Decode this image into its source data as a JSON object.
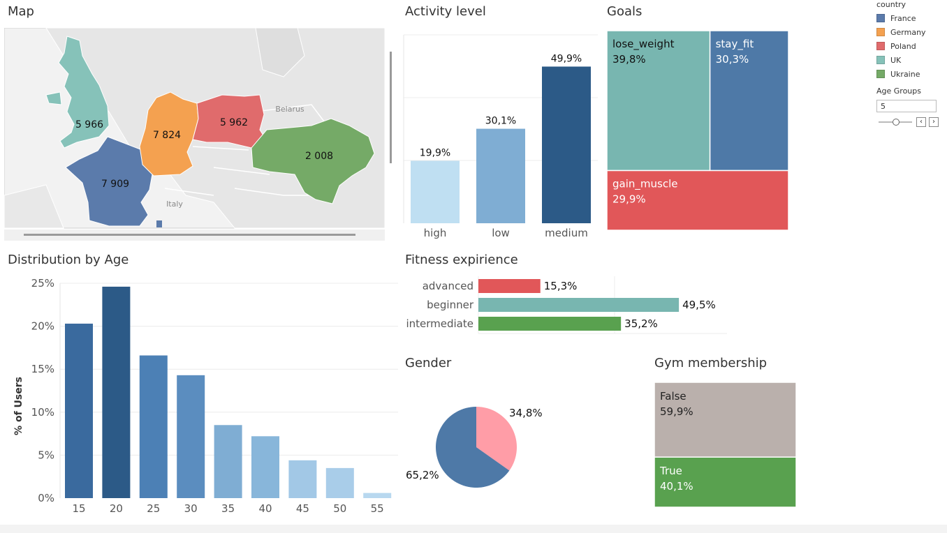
{
  "titles": {
    "map": "Map",
    "activity": "Activity level",
    "goals": "Goals",
    "age": "Distribution by Age",
    "fitness": "Fitness expirience",
    "gender": "Gender",
    "gym": "Gym membership"
  },
  "legend": {
    "title": "country",
    "items": [
      {
        "label": "France",
        "color": "#5b7bab"
      },
      {
        "label": "Germany",
        "color": "#f4a150"
      },
      {
        "label": "Poland",
        "color": "#e06b6c"
      },
      {
        "label": "UK",
        "color": "#86c2b9"
      },
      {
        "label": "Ukraine",
        "color": "#75aa67"
      }
    ]
  },
  "age_groups": {
    "label": "Age Groups",
    "value": "5",
    "prev_icon": "‹",
    "next_icon": "›"
  },
  "map": {
    "labels": [
      "Belarus",
      "Italy"
    ],
    "countries": [
      {
        "name": "UK",
        "value": "5 966",
        "color": "#86c2b9"
      },
      {
        "name": "Germany",
        "value": "7 824",
        "color": "#f4a150"
      },
      {
        "name": "Poland",
        "value": "5 962",
        "color": "#e06b6c"
      },
      {
        "name": "Ukraine",
        "value": "2 008",
        "color": "#75aa67"
      },
      {
        "name": "France",
        "value": "7 909",
        "color": "#5b7bab"
      }
    ]
  },
  "chart_data": [
    {
      "id": "activity",
      "type": "bar",
      "title": "Activity level",
      "categories": [
        "high",
        "low",
        "medium"
      ],
      "values": [
        19.9,
        30.1,
        49.9
      ],
      "value_labels": [
        "19,9%",
        "30,1%",
        "49,9%"
      ],
      "colors": [
        "#bfdff2",
        "#7fadd3",
        "#2c5a87"
      ],
      "ylim": [
        0,
        60
      ],
      "grid": true
    },
    {
      "id": "goals",
      "type": "treemap",
      "title": "Goals",
      "items": [
        {
          "name": "lose_weight",
          "value": 39.8,
          "label": "39,8%",
          "color": "#78b6b0"
        },
        {
          "name": "stay_fit",
          "value": 30.3,
          "label": "30,3%",
          "color": "#4e79a7"
        },
        {
          "name": "gain_muscle",
          "value": 29.9,
          "label": "29,9%",
          "color": "#e15759"
        }
      ]
    },
    {
      "id": "age",
      "type": "bar",
      "title": "Distribution by Age",
      "ylabel": "% of Users",
      "categories": [
        "15",
        "20",
        "25",
        "30",
        "35",
        "40",
        "45",
        "50",
        "55"
      ],
      "values": [
        20.3,
        24.6,
        16.6,
        14.3,
        8.5,
        7.2,
        4.4,
        3.5,
        0.6
      ],
      "yticks": [
        "0%",
        "5%",
        "10%",
        "15%",
        "20%",
        "25%"
      ],
      "ylim": [
        0,
        25
      ],
      "colors": [
        "#3a6a9e",
        "#2c5a87",
        "#4c80b5",
        "#5b8dbf",
        "#7fadd3",
        "#88b6da",
        "#a2c8e6",
        "#a9cde9",
        "#b8d8ef"
      ]
    },
    {
      "id": "fitness",
      "type": "bar",
      "orientation": "horizontal",
      "title": "Fitness expirience",
      "categories": [
        "advanced",
        "beginner",
        "intermediate"
      ],
      "values": [
        15.3,
        49.5,
        35.2
      ],
      "value_labels": [
        "15,3%",
        "49,5%",
        "35,2%"
      ],
      "colors": [
        "#e15759",
        "#78b6b0",
        "#59a14f"
      ],
      "xlim": [
        0,
        60
      ]
    },
    {
      "id": "gender",
      "type": "pie",
      "title": "Gender",
      "slices": [
        {
          "value": 34.8,
          "label": "34,8%",
          "color": "#ff9da7"
        },
        {
          "value": 65.2,
          "label": "65,2%",
          "color": "#4e79a7"
        }
      ]
    },
    {
      "id": "gym",
      "type": "treemap",
      "title": "Gym membership",
      "items": [
        {
          "name": "False",
          "value": 59.9,
          "label": "59,9%",
          "color": "#bab0ac"
        },
        {
          "name": "True",
          "value": 40.1,
          "label": "40,1%",
          "color": "#59a14f"
        }
      ]
    }
  ]
}
